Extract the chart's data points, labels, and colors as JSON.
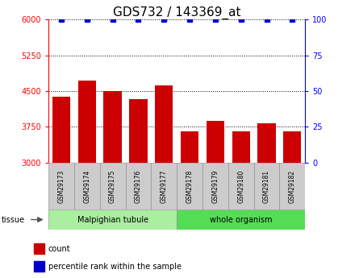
{
  "title": "GDS732 / 143369_at",
  "samples": [
    "GSM29173",
    "GSM29174",
    "GSM29175",
    "GSM29176",
    "GSM29177",
    "GSM29178",
    "GSM29179",
    "GSM29180",
    "GSM29181",
    "GSM29182"
  ],
  "counts": [
    4380,
    4720,
    4500,
    4330,
    4620,
    3650,
    3870,
    3650,
    3820,
    3650
  ],
  "percentile": [
    100,
    100,
    100,
    100,
    100,
    100,
    100,
    100,
    100,
    100
  ],
  "ylim": [
    3000,
    6000
  ],
  "yticks": [
    3000,
    3750,
    4500,
    5250,
    6000
  ],
  "right_yticks": [
    0,
    25,
    50,
    75,
    100
  ],
  "right_ylim": [
    0,
    100
  ],
  "bar_color": "#cc0000",
  "dot_color": "#0000cc",
  "tissue_groups": [
    {
      "label": "Malpighian tubule",
      "start": 0,
      "end": 5,
      "color": "#aaeea0"
    },
    {
      "label": "whole organism",
      "start": 5,
      "end": 10,
      "color": "#55dd55"
    }
  ],
  "tissue_label": "tissue",
  "legend_count_label": "count",
  "legend_pct_label": "percentile rank within the sample",
  "bar_width": 0.7,
  "tick_label_fontsize": 7,
  "title_fontsize": 11
}
